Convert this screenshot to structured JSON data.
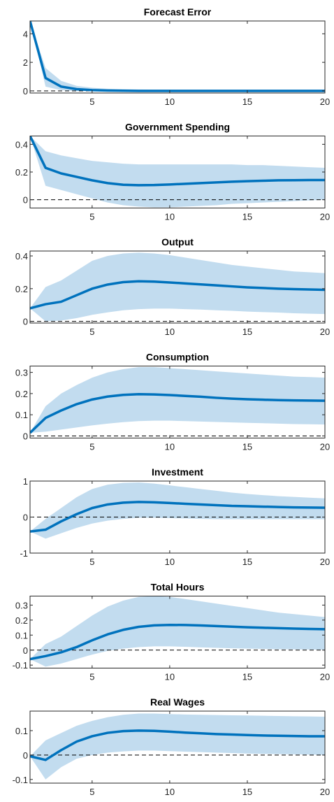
{
  "chart_data": [
    {
      "type": "line",
      "title": "Forecast Error",
      "x": [
        1,
        2,
        3,
        4,
        5,
        6,
        7,
        8,
        9,
        10,
        11,
        12,
        13,
        14,
        15,
        16,
        17,
        18,
        19,
        20
      ],
      "xlim": [
        1,
        20
      ],
      "xticks": [
        5,
        10,
        15,
        20
      ],
      "ylim": [
        -0.15,
        4.9
      ],
      "yticks": [
        0,
        2,
        4
      ],
      "zero_line": true,
      "series": [
        {
          "color": "#0072bd",
          "values": [
            4.9,
            0.9,
            0.3,
            0.12,
            0.05,
            0.02,
            0.01,
            0,
            0,
            0,
            0,
            0,
            0,
            0,
            0,
            0,
            0,
            0,
            0,
            0
          ]
        }
      ],
      "band": {
        "color": "#c2dcef",
        "upper": [
          4.9,
          1.6,
          0.7,
          0.35,
          0.22,
          0.15,
          0.12,
          0.1,
          0.09,
          0.09,
          0.08,
          0.08,
          0.08,
          0.08,
          0.08,
          0.08,
          0.08,
          0.08,
          0.08,
          0.08
        ],
        "lower": [
          4.9,
          0.3,
          0.05,
          -0.02,
          -0.03,
          -0.03,
          -0.03,
          -0.03,
          -0.03,
          -0.03,
          -0.03,
          -0.03,
          -0.03,
          -0.03,
          -0.03,
          -0.03,
          -0.03,
          -0.03,
          -0.03,
          -0.03
        ]
      }
    },
    {
      "type": "line",
      "title": "Government Spending",
      "x": [
        1,
        2,
        3,
        4,
        5,
        6,
        7,
        8,
        9,
        10,
        11,
        12,
        13,
        14,
        15,
        16,
        17,
        18,
        19,
        20
      ],
      "xlim": [
        1,
        20
      ],
      "xticks": [
        5,
        10,
        15,
        20
      ],
      "ylim": [
        -0.06,
        0.46
      ],
      "yticks": [
        0,
        0.2,
        0.4
      ],
      "zero_line": true,
      "series": [
        {
          "color": "#0072bd",
          "values": [
            0.46,
            0.23,
            0.19,
            0.165,
            0.14,
            0.12,
            0.108,
            0.105,
            0.106,
            0.11,
            0.115,
            0.12,
            0.125,
            0.13,
            0.134,
            0.137,
            0.14,
            0.141,
            0.142,
            0.142
          ]
        }
      ],
      "band": {
        "color": "#c2dcef",
        "upper": [
          0.46,
          0.35,
          0.32,
          0.3,
          0.28,
          0.27,
          0.26,
          0.255,
          0.255,
          0.255,
          0.255,
          0.255,
          0.255,
          0.255,
          0.25,
          0.25,
          0.245,
          0.24,
          0.235,
          0.23
        ],
        "lower": [
          0.46,
          0.1,
          0.07,
          0.04,
          0.01,
          -0.02,
          -0.04,
          -0.05,
          -0.055,
          -0.055,
          -0.05,
          -0.045,
          -0.04,
          -0.03,
          -0.025,
          -0.02,
          -0.015,
          -0.01,
          -0.005,
          0
        ]
      }
    },
    {
      "type": "line",
      "title": "Output",
      "x": [
        1,
        2,
        3,
        4,
        5,
        6,
        7,
        8,
        9,
        10,
        11,
        12,
        13,
        14,
        15,
        16,
        17,
        18,
        19,
        20
      ],
      "xlim": [
        1,
        20
      ],
      "xticks": [
        5,
        10,
        15,
        20
      ],
      "ylim": [
        -0.01,
        0.43
      ],
      "yticks": [
        0,
        0.2,
        0.4
      ],
      "zero_line": true,
      "series": [
        {
          "color": "#0072bd",
          "values": [
            0.08,
            0.105,
            0.12,
            0.16,
            0.2,
            0.225,
            0.24,
            0.245,
            0.243,
            0.238,
            0.232,
            0.226,
            0.22,
            0.214,
            0.208,
            0.204,
            0.2,
            0.197,
            0.195,
            0.193
          ]
        }
      ],
      "band": {
        "color": "#c2dcef",
        "upper": [
          0.08,
          0.21,
          0.25,
          0.31,
          0.37,
          0.4,
          0.415,
          0.42,
          0.415,
          0.405,
          0.39,
          0.375,
          0.36,
          0.345,
          0.335,
          0.325,
          0.315,
          0.305,
          0.3,
          0.295
        ],
        "lower": [
          0.08,
          0.0,
          0.005,
          0.02,
          0.04,
          0.055,
          0.068,
          0.075,
          0.078,
          0.078,
          0.075,
          0.072,
          0.068,
          0.065,
          0.06,
          0.057,
          0.054,
          0.05,
          0.047,
          0.045
        ]
      }
    },
    {
      "type": "line",
      "title": "Consumption",
      "x": [
        1,
        2,
        3,
        4,
        5,
        6,
        7,
        8,
        9,
        10,
        11,
        12,
        13,
        14,
        15,
        16,
        17,
        18,
        19,
        20
      ],
      "xlim": [
        1,
        20
      ],
      "xticks": [
        5,
        10,
        15,
        20
      ],
      "ylim": [
        -0.01,
        0.33
      ],
      "yticks": [
        0,
        0.1,
        0.2,
        0.3
      ],
      "zero_line": true,
      "series": [
        {
          "color": "#0072bd",
          "values": [
            0.015,
            0.085,
            0.12,
            0.15,
            0.172,
            0.186,
            0.194,
            0.197,
            0.196,
            0.193,
            0.189,
            0.185,
            0.18,
            0.176,
            0.173,
            0.171,
            0.169,
            0.168,
            0.167,
            0.166
          ]
        }
      ],
      "band": {
        "color": "#c2dcef",
        "upper": [
          0.015,
          0.14,
          0.2,
          0.24,
          0.275,
          0.3,
          0.315,
          0.325,
          0.325,
          0.32,
          0.315,
          0.31,
          0.305,
          0.3,
          0.295,
          0.29,
          0.285,
          0.28,
          0.278,
          0.275
        ],
        "lower": [
          0.015,
          0.02,
          0.03,
          0.04,
          0.05,
          0.058,
          0.065,
          0.07,
          0.072,
          0.072,
          0.07,
          0.068,
          0.066,
          0.064,
          0.062,
          0.06,
          0.058,
          0.056,
          0.055,
          0.054
        ]
      }
    },
    {
      "type": "line",
      "title": "Investment",
      "x": [
        1,
        2,
        3,
        4,
        5,
        6,
        7,
        8,
        9,
        10,
        11,
        12,
        13,
        14,
        15,
        16,
        17,
        18,
        19,
        20
      ],
      "xlim": [
        1,
        20
      ],
      "xticks": [
        5,
        10,
        15,
        20
      ],
      "ylim": [
        -1,
        1
      ],
      "yticks": [
        -1,
        0,
        1
      ],
      "zero_line": true,
      "series": [
        {
          "color": "#0072bd",
          "values": [
            -0.4,
            -0.35,
            -0.12,
            0.08,
            0.25,
            0.35,
            0.4,
            0.42,
            0.41,
            0.39,
            0.37,
            0.35,
            0.33,
            0.31,
            0.3,
            0.29,
            0.28,
            0.27,
            0.265,
            0.26
          ]
        }
      ],
      "band": {
        "color": "#c2dcef",
        "upper": [
          -0.4,
          -0.05,
          0.25,
          0.55,
          0.78,
          0.9,
          0.95,
          0.96,
          0.93,
          0.88,
          0.83,
          0.78,
          0.73,
          0.68,
          0.64,
          0.61,
          0.58,
          0.56,
          0.54,
          0.52
        ],
        "lower": [
          -0.4,
          -0.6,
          -0.45,
          -0.3,
          -0.18,
          -0.1,
          -0.05,
          -0.02,
          -0.02,
          -0.03,
          -0.04,
          -0.05,
          -0.06,
          -0.06,
          -0.06,
          -0.06,
          -0.06,
          -0.06,
          -0.06,
          -0.06
        ]
      }
    },
    {
      "type": "line",
      "title": "Total Hours",
      "x": [
        1,
        2,
        3,
        4,
        5,
        6,
        7,
        8,
        9,
        10,
        11,
        12,
        13,
        14,
        15,
        16,
        17,
        18,
        19,
        20
      ],
      "xlim": [
        1,
        20
      ],
      "xticks": [
        5,
        10,
        15,
        20
      ],
      "ylim": [
        -0.12,
        0.36
      ],
      "yticks": [
        -0.1,
        0,
        0.1,
        0.2,
        0.3
      ],
      "zero_line": true,
      "series": [
        {
          "color": "#0072bd",
          "values": [
            -0.06,
            -0.04,
            -0.015,
            0.02,
            0.065,
            0.105,
            0.135,
            0.155,
            0.165,
            0.168,
            0.167,
            0.164,
            0.16,
            0.156,
            0.152,
            0.149,
            0.146,
            0.143,
            0.141,
            0.139
          ]
        }
      ],
      "band": {
        "color": "#c2dcef",
        "upper": [
          -0.06,
          0.04,
          0.09,
          0.16,
          0.23,
          0.29,
          0.33,
          0.355,
          0.36,
          0.355,
          0.34,
          0.325,
          0.31,
          0.295,
          0.28,
          0.265,
          0.25,
          0.24,
          0.23,
          0.22
        ],
        "lower": [
          -0.06,
          -0.11,
          -0.09,
          -0.06,
          -0.03,
          -0.005,
          0.01,
          0.02,
          0.025,
          0.025,
          0.022,
          0.018,
          0.015,
          0.012,
          0.01,
          0.008,
          0.006,
          0.005,
          0.004,
          0.003
        ]
      }
    },
    {
      "type": "line",
      "title": "Real Wages",
      "x": [
        1,
        2,
        3,
        4,
        5,
        6,
        7,
        8,
        9,
        10,
        11,
        12,
        13,
        14,
        15,
        16,
        17,
        18,
        19,
        20
      ],
      "xlim": [
        1,
        20
      ],
      "xticks": [
        5,
        10,
        15,
        20
      ],
      "ylim": [
        -0.115,
        0.18
      ],
      "yticks": [
        -0.1,
        0,
        0.1
      ],
      "zero_line": true,
      "series": [
        {
          "color": "#0072bd",
          "values": [
            -0.005,
            -0.02,
            0.02,
            0.055,
            0.077,
            0.091,
            0.098,
            0.1,
            0.099,
            0.096,
            0.092,
            0.089,
            0.086,
            0.084,
            0.082,
            0.08,
            0.079,
            0.078,
            0.077,
            0.077
          ]
        }
      ],
      "band": {
        "color": "#c2dcef",
        "upper": [
          -0.005,
          0.06,
          0.09,
          0.12,
          0.14,
          0.155,
          0.165,
          0.17,
          0.17,
          0.168,
          0.166,
          0.165,
          0.164,
          0.163,
          0.162,
          0.161,
          0.16,
          0.159,
          0.158,
          0.157
        ],
        "lower": [
          -0.005,
          -0.1,
          -0.05,
          -0.015,
          0.0,
          0.01,
          0.015,
          0.018,
          0.018,
          0.016,
          0.014,
          0.012,
          0.01,
          0.008,
          0.006,
          0.005,
          0.004,
          0.003,
          0.002,
          0.001
        ]
      }
    }
  ]
}
